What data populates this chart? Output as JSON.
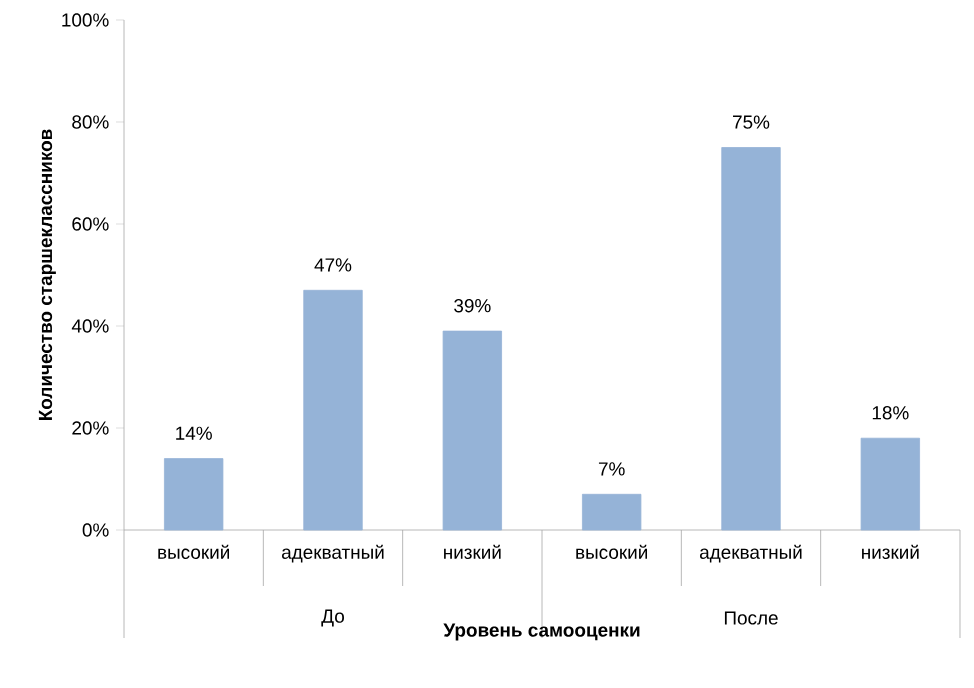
{
  "chart_data": {
    "type": "bar",
    "ylabel": "Количество старшеклассников",
    "xlabel": "Уровень самооценки",
    "categories": [
      "высокий",
      "адекватный",
      "низкий",
      "высокий",
      "адекватный",
      "низкий"
    ],
    "values": [
      14,
      47,
      39,
      7,
      75,
      18
    ],
    "value_labels": [
      "14%",
      "47%",
      "39%",
      "7%",
      "75%",
      "18%"
    ],
    "color": "#95b3d7",
    "annotations": [
      "До",
      "После"
    ],
    "ylim": [
      0,
      100
    ],
    "yticks": [
      {
        "value": 0,
        "label": "0%"
      },
      {
        "value": 20,
        "label": "20%"
      },
      {
        "value": 40,
        "label": "40%"
      },
      {
        "value": 60,
        "label": "60%"
      },
      {
        "value": 80,
        "label": "80%"
      },
      {
        "value": 100,
        "label": "100%"
      }
    ],
    "grid": false
  }
}
